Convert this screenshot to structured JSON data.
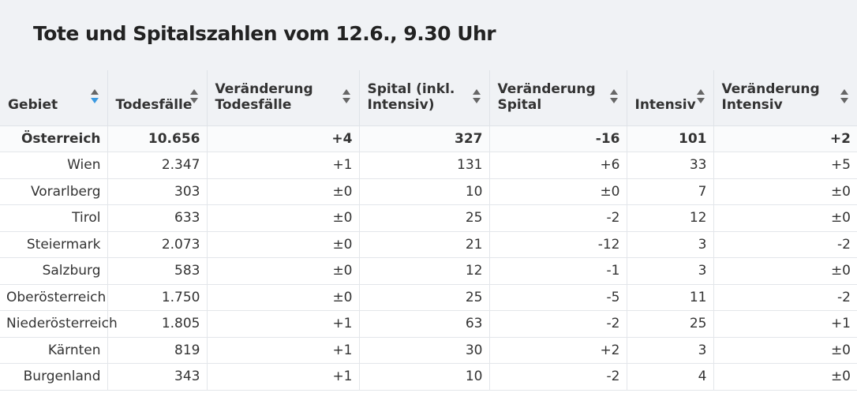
{
  "title": "Tote und Spitalszahlen vom 12.6., 9.30 Uhr",
  "colors": {
    "header_bg": "#f0f2f5",
    "sort_active": "#3b9ae1",
    "sort_inactive": "#666666",
    "text": "#333333"
  },
  "chart_data": {
    "type": "table",
    "title": "Tote und Spitalszahlen vom 12.6., 9.30 Uhr",
    "columns": [
      {
        "label": "Gebiet",
        "sort_icon": "sort-active-desc-icon"
      },
      {
        "label": "Todesfälle",
        "sort_icon": "sort-icon"
      },
      {
        "label": "Veränderung Todesfälle",
        "sort_icon": "sort-icon"
      },
      {
        "label": "Spital (inkl. Intensiv)",
        "sort_icon": "sort-icon"
      },
      {
        "label": "Veränderung Spital",
        "sort_icon": "sort-icon"
      },
      {
        "label": "Intensiv",
        "sort_icon": "sort-icon"
      },
      {
        "label": "Veränderung Intensiv",
        "sort_icon": "sort-icon"
      }
    ],
    "rows": [
      [
        "Österreich",
        "10.656",
        "+4",
        "327",
        "-16",
        "101",
        "+2"
      ],
      [
        "Wien",
        "2.347",
        "+1",
        "131",
        "+6",
        "33",
        "+5"
      ],
      [
        "Vorarlberg",
        "303",
        "±0",
        "10",
        "±0",
        "7",
        "±0"
      ],
      [
        "Tirol",
        "633",
        "±0",
        "25",
        "-2",
        "12",
        "±0"
      ],
      [
        "Steiermark",
        "2.073",
        "±0",
        "21",
        "-12",
        "3",
        "-2"
      ],
      [
        "Salzburg",
        "583",
        "±0",
        "12",
        "-1",
        "3",
        "±0"
      ],
      [
        "Oberösterreich",
        "1.750",
        "±0",
        "25",
        "-5",
        "11",
        "-2"
      ],
      [
        "Niederösterreich",
        "1.805",
        "+1",
        "63",
        "-2",
        "25",
        "+1"
      ],
      [
        "Kärnten",
        "819",
        "+1",
        "30",
        "+2",
        "3",
        "±0"
      ],
      [
        "Burgenland",
        "343",
        "+1",
        "10",
        "-2",
        "4",
        "±0"
      ]
    ]
  }
}
